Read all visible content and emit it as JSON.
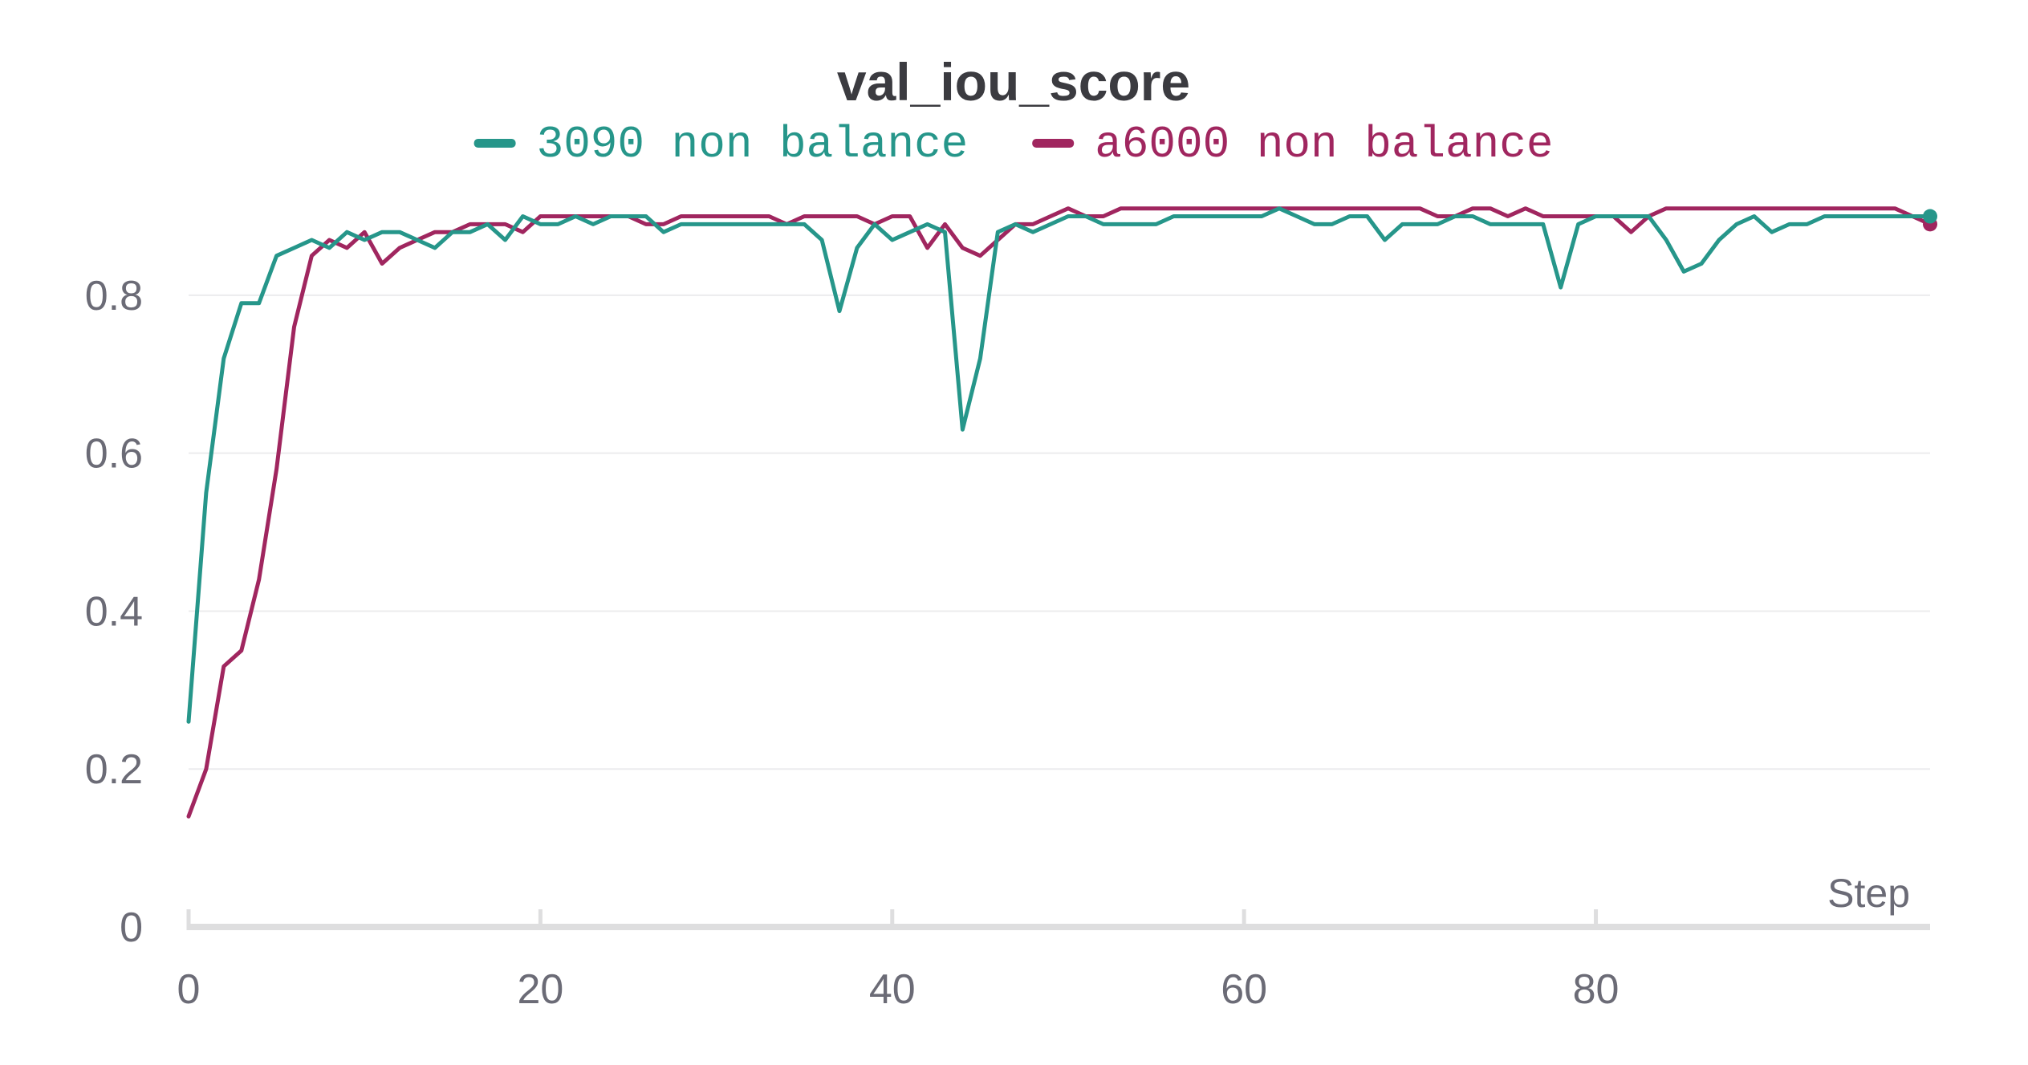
{
  "chart_data": {
    "type": "line",
    "title": "val_iou_score",
    "xlabel": "Step",
    "ylabel": "",
    "xlim": [
      0,
      99
    ],
    "ylim": [
      0,
      0.93
    ],
    "x_ticks": [
      0,
      20,
      40,
      60,
      80
    ],
    "y_ticks": [
      0,
      0.2,
      0.4,
      0.6,
      0.8
    ],
    "x_tick_labels": [
      "0",
      "20",
      "40",
      "60",
      "80"
    ],
    "y_tick_labels": [
      "0",
      "0.2",
      "0.4",
      "0.6",
      "0.8"
    ],
    "grid": true,
    "legend_position": "top",
    "series": [
      {
        "name": "3090 non balance",
        "color": "#26968a",
        "values": [
          0.26,
          0.55,
          0.72,
          0.79,
          0.79,
          0.85,
          0.86,
          0.87,
          0.86,
          0.88,
          0.87,
          0.88,
          0.88,
          0.87,
          0.86,
          0.88,
          0.88,
          0.89,
          0.87,
          0.9,
          0.89,
          0.89,
          0.9,
          0.89,
          0.9,
          0.9,
          0.9,
          0.88,
          0.89,
          0.89,
          0.89,
          0.89,
          0.89,
          0.89,
          0.89,
          0.89,
          0.87,
          0.78,
          0.86,
          0.89,
          0.87,
          0.88,
          0.89,
          0.88,
          0.63,
          0.72,
          0.88,
          0.89,
          0.88,
          0.89,
          0.9,
          0.9,
          0.89,
          0.89,
          0.89,
          0.89,
          0.9,
          0.9,
          0.9,
          0.9,
          0.9,
          0.9,
          0.91,
          0.9,
          0.89,
          0.89,
          0.9,
          0.9,
          0.87,
          0.89,
          0.89,
          0.89,
          0.9,
          0.9,
          0.89,
          0.89,
          0.89,
          0.89,
          0.81,
          0.89,
          0.9,
          0.9,
          0.9,
          0.9,
          0.87,
          0.83,
          0.84,
          0.87,
          0.89,
          0.9,
          0.88,
          0.89,
          0.89,
          0.9,
          0.9,
          0.9,
          0.9,
          0.9,
          0.9,
          0.9
        ]
      },
      {
        "name": "a6000 non balance",
        "color": "#a0265f",
        "values": [
          0.14,
          0.2,
          0.33,
          0.35,
          0.44,
          0.58,
          0.76,
          0.85,
          0.87,
          0.86,
          0.88,
          0.84,
          0.86,
          0.87,
          0.88,
          0.88,
          0.89,
          0.89,
          0.89,
          0.88,
          0.9,
          0.9,
          0.9,
          0.9,
          0.9,
          0.9,
          0.89,
          0.89,
          0.9,
          0.9,
          0.9,
          0.9,
          0.9,
          0.9,
          0.89,
          0.9,
          0.9,
          0.9,
          0.9,
          0.89,
          0.9,
          0.9,
          0.86,
          0.89,
          0.86,
          0.85,
          0.87,
          0.89,
          0.89,
          0.9,
          0.91,
          0.9,
          0.9,
          0.91,
          0.91,
          0.91,
          0.91,
          0.91,
          0.91,
          0.91,
          0.91,
          0.91,
          0.91,
          0.91,
          0.91,
          0.91,
          0.91,
          0.91,
          0.91,
          0.91,
          0.91,
          0.9,
          0.9,
          0.91,
          0.91,
          0.9,
          0.91,
          0.9,
          0.9,
          0.9,
          0.9,
          0.9,
          0.88,
          0.9,
          0.91,
          0.91,
          0.91,
          0.91,
          0.91,
          0.91,
          0.91,
          0.91,
          0.91,
          0.91,
          0.91,
          0.91,
          0.91,
          0.91,
          0.9,
          0.89
        ]
      }
    ]
  }
}
